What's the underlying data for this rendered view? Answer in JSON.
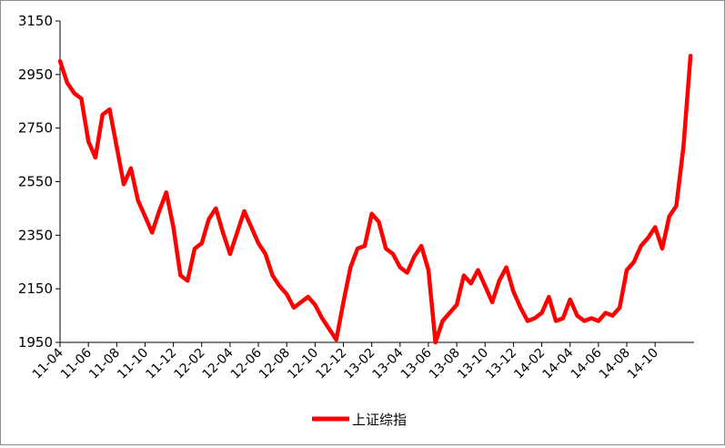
{
  "chart_data": {
    "type": "line",
    "title": "",
    "xlabel": "",
    "ylabel": "",
    "ylim": [
      1950,
      3150
    ],
    "y_ticks": [
      1950,
      2150,
      2350,
      2550,
      2750,
      2950,
      3150
    ],
    "x_tick_labels": [
      "11-04",
      "11-06",
      "11-08",
      "11-10",
      "11-12",
      "12-02",
      "12-04",
      "12-06",
      "12-08",
      "12-10",
      "12-12",
      "13-02",
      "13-04",
      "13-06",
      "13-08",
      "13-10",
      "13-12",
      "14-02",
      "14-04",
      "14-06",
      "14-08",
      "14-10"
    ],
    "grid": false,
    "legend_position": "bottom",
    "series": [
      {
        "name": "上证综指",
        "color": "#ff0000",
        "x": [
          "2011-04",
          "2011-04",
          "2011-05",
          "2011-05",
          "2011-06",
          "2011-06",
          "2011-07",
          "2011-07",
          "2011-08",
          "2011-08",
          "2011-09",
          "2011-09",
          "2011-10",
          "2011-10",
          "2011-11",
          "2011-11",
          "2011-12",
          "2011-12",
          "2012-01",
          "2012-01",
          "2012-02",
          "2012-02",
          "2012-03",
          "2012-03",
          "2012-04",
          "2012-04",
          "2012-05",
          "2012-05",
          "2012-06",
          "2012-06",
          "2012-07",
          "2012-07",
          "2012-08",
          "2012-08",
          "2012-09",
          "2012-09",
          "2012-10",
          "2012-10",
          "2012-11",
          "2012-11",
          "2012-12",
          "2012-12",
          "2013-01",
          "2013-01",
          "2013-02",
          "2013-02",
          "2013-03",
          "2013-03",
          "2013-04",
          "2013-04",
          "2013-05",
          "2013-05",
          "2013-06",
          "2013-06",
          "2013-07",
          "2013-07",
          "2013-08",
          "2013-08",
          "2013-09",
          "2013-09",
          "2013-10",
          "2013-10",
          "2013-11",
          "2013-11",
          "2013-12",
          "2013-12",
          "2014-01",
          "2014-01",
          "2014-02",
          "2014-02",
          "2014-03",
          "2014-03",
          "2014-04",
          "2014-04",
          "2014-05",
          "2014-05",
          "2014-06",
          "2014-06",
          "2014-07",
          "2014-07",
          "2014-08",
          "2014-08",
          "2014-09",
          "2014-09",
          "2014-10",
          "2014-10",
          "2014-11",
          "2014-11",
          "2014-12",
          "2014-12"
        ],
        "values": [
          3000,
          2920,
          2880,
          2860,
          2700,
          2640,
          2800,
          2820,
          2680,
          2540,
          2600,
          2480,
          2420,
          2360,
          2440,
          2510,
          2380,
          2200,
          2180,
          2300,
          2320,
          2410,
          2450,
          2360,
          2280,
          2360,
          2440,
          2380,
          2320,
          2280,
          2200,
          2160,
          2130,
          2080,
          2100,
          2120,
          2090,
          2040,
          2000,
          1960,
          2100,
          2230,
          2300,
          2310,
          2430,
          2400,
          2300,
          2280,
          2230,
          2210,
          2270,
          2310,
          2220,
          1950,
          2030,
          2060,
          2090,
          2200,
          2170,
          2220,
          2160,
          2100,
          2180,
          2230,
          2140,
          2080,
          2030,
          2040,
          2060,
          2120,
          2030,
          2040,
          2110,
          2050,
          2030,
          2040,
          2030,
          2060,
          2050,
          2080,
          2220,
          2250,
          2310,
          2340,
          2380,
          2300,
          2420,
          2460,
          2680,
          3020
        ]
      }
    ]
  }
}
